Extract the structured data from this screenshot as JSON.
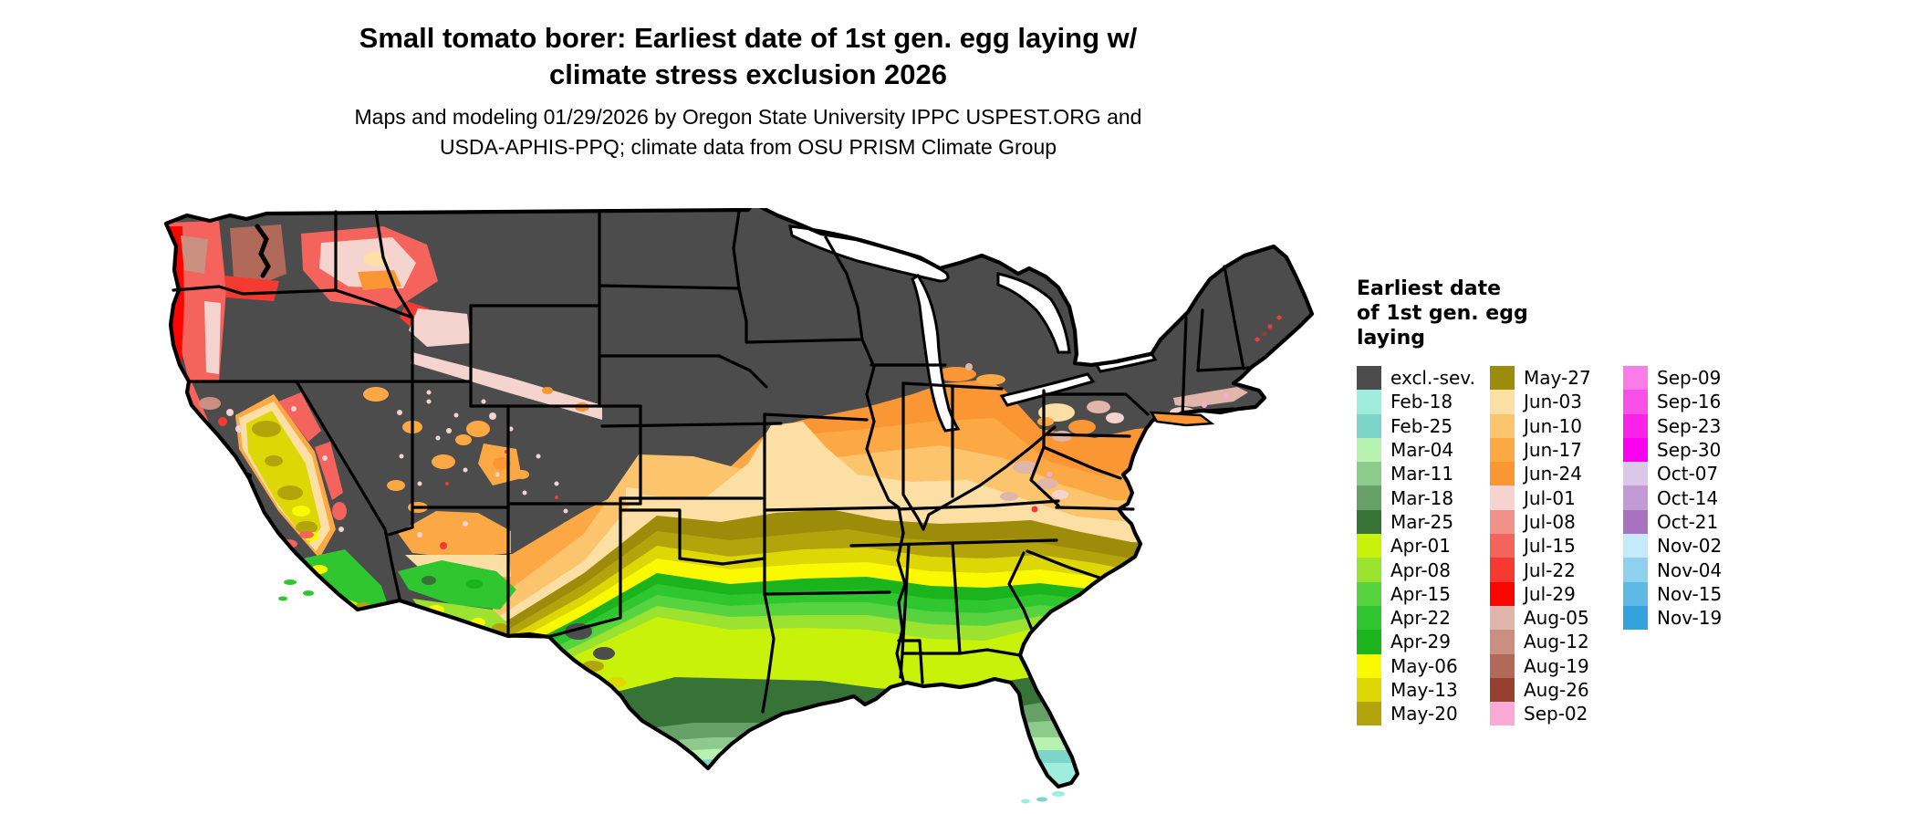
{
  "title": {
    "line1": "Small tomato borer: Earliest date of 1st gen. egg laying w/",
    "line2": "climate stress exclusion 2026"
  },
  "subtitle": {
    "line1": "Maps and modeling 01/29/2026 by Oregon State University IPPC USPEST.ORG and",
    "line2": "USDA-APHIS-PPQ; climate data from OSU PRISM Climate Group"
  },
  "legend": {
    "title_lines": [
      "Earliest date",
      "of 1st gen. egg",
      "laying"
    ],
    "columns": [
      [
        {
          "key": "excl",
          "label": "excl.-sev."
        },
        {
          "key": "feb18",
          "label": "Feb-18"
        },
        {
          "key": "feb25",
          "label": "Feb-25"
        },
        {
          "key": "mar04",
          "label": "Mar-04"
        },
        {
          "key": "mar11",
          "label": "Mar-11"
        },
        {
          "key": "mar18",
          "label": "Mar-18"
        },
        {
          "key": "mar25",
          "label": "Mar-25"
        },
        {
          "key": "apr01",
          "label": "Apr-01"
        },
        {
          "key": "apr08",
          "label": "Apr-08"
        },
        {
          "key": "apr15",
          "label": "Apr-15"
        },
        {
          "key": "apr22",
          "label": "Apr-22"
        },
        {
          "key": "apr29",
          "label": "Apr-29"
        },
        {
          "key": "may06",
          "label": "May-06"
        },
        {
          "key": "may13",
          "label": "May-13"
        },
        {
          "key": "may20",
          "label": "May-20"
        }
      ],
      [
        {
          "key": "may27",
          "label": "May-27"
        },
        {
          "key": "jun03",
          "label": "Jun-03"
        },
        {
          "key": "jun10",
          "label": "Jun-10"
        },
        {
          "key": "jun17",
          "label": "Jun-17"
        },
        {
          "key": "jun24",
          "label": "Jun-24"
        },
        {
          "key": "jul01",
          "label": "Jul-01"
        },
        {
          "key": "jul08",
          "label": "Jul-08"
        },
        {
          "key": "jul15",
          "label": "Jul-15"
        },
        {
          "key": "jul22",
          "label": "Jul-22"
        },
        {
          "key": "jul29",
          "label": "Jul-29"
        },
        {
          "key": "aug05",
          "label": "Aug-05"
        },
        {
          "key": "aug12",
          "label": "Aug-12"
        },
        {
          "key": "aug19",
          "label": "Aug-19"
        },
        {
          "key": "aug26",
          "label": "Aug-26"
        },
        {
          "key": "sep02",
          "label": "Sep-02"
        }
      ],
      [
        {
          "key": "sep09",
          "label": "Sep-09"
        },
        {
          "key": "sep16",
          "label": "Sep-16"
        },
        {
          "key": "sep23",
          "label": "Sep-23"
        },
        {
          "key": "sep30",
          "label": "Sep-30"
        },
        {
          "key": "oct07",
          "label": "Oct-07"
        },
        {
          "key": "oct14",
          "label": "Oct-14"
        },
        {
          "key": "oct21",
          "label": "Oct-21"
        },
        {
          "key": "nov02",
          "label": "Nov-02"
        },
        {
          "key": "nov04",
          "label": "Nov-04"
        },
        {
          "key": "nov15",
          "label": "Nov-15"
        },
        {
          "key": "nov19",
          "label": "Nov-19"
        }
      ]
    ]
  },
  "colors": {
    "excl": "#4C4C4C",
    "feb18": "#9FEEDD",
    "feb25": "#7DD5C9",
    "mar04": "#B8F2B0",
    "mar11": "#8DCB8D",
    "mar18": "#68A168",
    "mar25": "#377337",
    "apr01": "#C9F20B",
    "apr08": "#9BE231",
    "apr15": "#57D33F",
    "apr22": "#2FC62F",
    "apr29": "#1CB41C",
    "may06": "#FAF900",
    "may13": "#DCD705",
    "may20": "#B2A40A",
    "may27": "#9C8C09",
    "jun03": "#FBDFA4",
    "jun10": "#FCC46C",
    "jun17": "#FCA945",
    "jun24": "#FA9634",
    "jul01": "#F5D4CF",
    "jul08": "#F0918A",
    "jul15": "#F4635C",
    "jul22": "#F53A31",
    "jul29": "#FB0500",
    "aug05": "#E0B6AA",
    "aug12": "#C99082",
    "aug19": "#B16A5A",
    "aug26": "#964130",
    "sep02": "#FBA9D6",
    "sep09": "#FB7CE8",
    "sep16": "#F94EE8",
    "sep23": "#F922E8",
    "sep30": "#FA00EE",
    "oct07": "#DBC7E8",
    "oct14": "#C29AD4",
    "oct21": "#A872BF",
    "nov02": "#C5EAF9",
    "nov04": "#8ED1EE",
    "nov15": "#5EB9E4",
    "nov19": "#34A2DB",
    "white": "#FFFFFF",
    "black": "#000000"
  }
}
